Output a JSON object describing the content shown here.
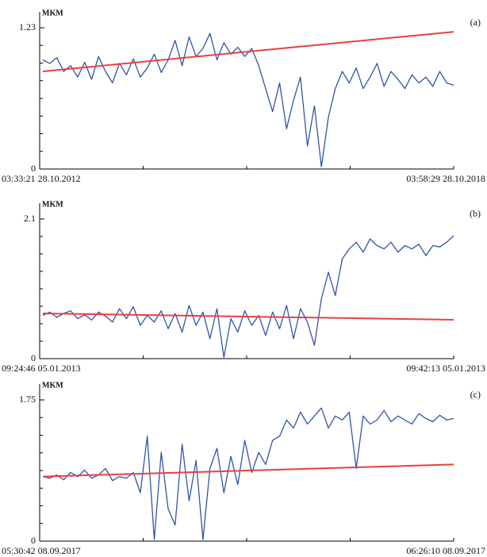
{
  "chart_data": [
    {
      "type": "line",
      "panel_label": "(a)",
      "y_label": "MKM",
      "xtick_labels": [
        "03:33:21 28.10.2012",
        "03:58:29 28.10.2018"
      ],
      "ylim": [
        0,
        1.23
      ],
      "yticks": [
        0,
        1.23
      ],
      "series": [
        {
          "color": "#2f55a8",
          "values": [
            0.95,
            0.92,
            0.97,
            0.85,
            0.9,
            0.8,
            0.93,
            0.78,
            0.98,
            0.85,
            0.75,
            0.92,
            0.82,
            0.96,
            0.8,
            0.88,
            1.0,
            0.84,
            0.95,
            1.12,
            0.9,
            1.15,
            0.98,
            1.05,
            1.18,
            0.95,
            1.1,
            1.0,
            1.06,
            0.98,
            1.05,
            0.9,
            0.7,
            0.5,
            0.75,
            0.35,
            0.6,
            0.8,
            0.2,
            0.55,
            0.02,
            0.45,
            0.7,
            0.85,
            0.75,
            0.88,
            0.7,
            0.8,
            0.92,
            0.72,
            0.85,
            0.78,
            0.7,
            0.82,
            0.75,
            0.8,
            0.72,
            0.85,
            0.75,
            0.73
          ]
        },
        {
          "color": "#e8413c",
          "values": [
            0.85,
            1.195
          ]
        }
      ]
    },
    {
      "type": "line",
      "panel_label": "(b)",
      "y_label": "MKM",
      "xtick_labels": [
        "09:24:46 05.01.2013",
        "09:42:13 05.01.2013"
      ],
      "ylim": [
        0,
        2.1
      ],
      "yticks": [
        0,
        2.1
      ],
      "series": [
        {
          "color": "#2f55a8",
          "values": [
            0.65,
            0.7,
            0.62,
            0.68,
            0.72,
            0.6,
            0.66,
            0.58,
            0.7,
            0.64,
            0.55,
            0.75,
            0.6,
            0.78,
            0.5,
            0.65,
            0.55,
            0.72,
            0.45,
            0.68,
            0.4,
            0.8,
            0.5,
            0.7,
            0.3,
            0.75,
            0.02,
            0.6,
            0.4,
            0.72,
            0.5,
            0.65,
            0.35,
            0.7,
            0.45,
            0.8,
            0.3,
            0.75,
            0.55,
            0.2,
            0.9,
            1.3,
            0.95,
            1.5,
            1.65,
            1.75,
            1.6,
            1.8,
            1.7,
            1.65,
            1.75,
            1.6,
            1.7,
            1.65,
            1.72,
            1.55,
            1.7,
            1.68,
            1.75,
            1.85
          ]
        },
        {
          "color": "#e8413c",
          "values": [
            0.68,
            0.585
          ]
        }
      ]
    },
    {
      "type": "line",
      "panel_label": "(c)",
      "y_label": "MKM",
      "xtick_labels": [
        "05:30:42 08.09.2017",
        "06:26:10 08.09.2017"
      ],
      "ylim": [
        0,
        1.75
      ],
      "yticks": [
        0,
        1.75
      ],
      "series": [
        {
          "color": "#2f55a8",
          "values": [
            0.8,
            0.78,
            0.82,
            0.76,
            0.85,
            0.8,
            0.88,
            0.78,
            0.82,
            0.9,
            0.75,
            0.8,
            0.78,
            0.85,
            0.6,
            1.3,
            0.02,
            1.1,
            0.4,
            0.2,
            1.2,
            0.5,
            1.0,
            0.02,
            0.9,
            1.15,
            0.6,
            1.05,
            0.7,
            1.25,
            0.85,
            1.1,
            0.95,
            1.25,
            1.3,
            1.5,
            1.4,
            1.6,
            1.45,
            1.55,
            1.65,
            1.4,
            1.55,
            1.5,
            1.6,
            0.9,
            1.55,
            1.45,
            1.5,
            1.62,
            1.48,
            1.55,
            1.5,
            1.45,
            1.58,
            1.52,
            1.48,
            1.56,
            1.5,
            1.52
          ]
        },
        {
          "color": "#e8413c",
          "values": [
            0.8,
            0.95
          ]
        }
      ]
    }
  ]
}
